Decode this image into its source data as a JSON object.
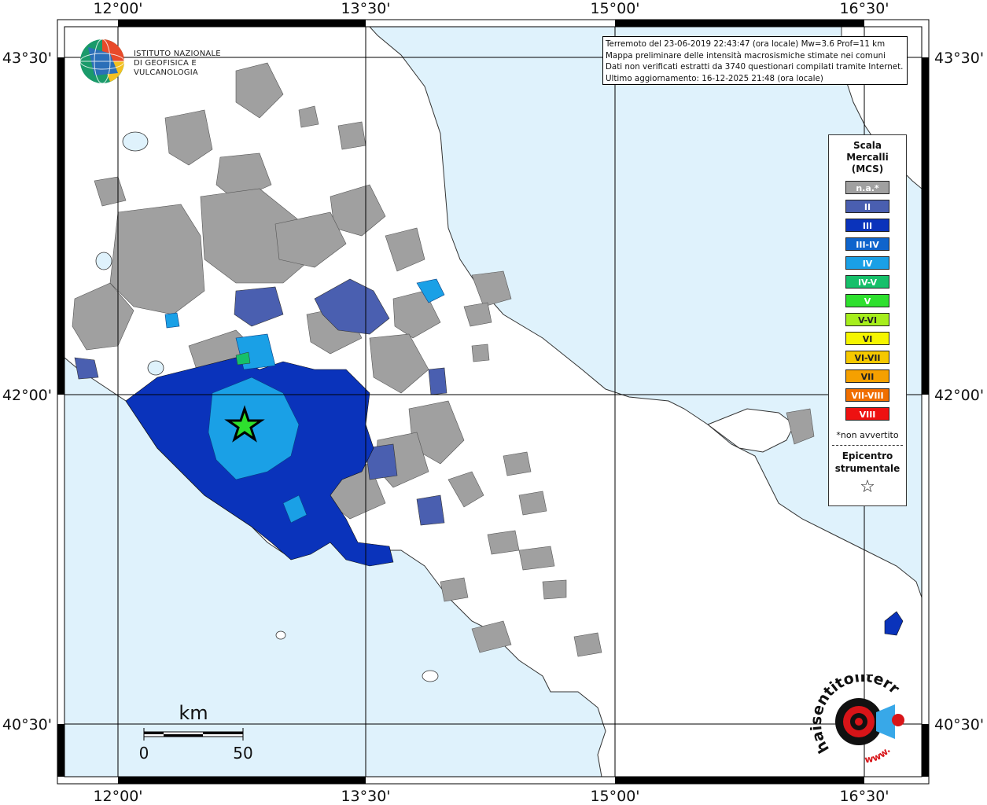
{
  "map": {
    "lon_labels": [
      "12°00'",
      "13°30'",
      "15°00'",
      "16°30'"
    ],
    "lat_labels": [
      "43°30'",
      "42°00'",
      "40°30'"
    ],
    "scale_bar": {
      "unit": "km",
      "start": "0",
      "end": "50"
    }
  },
  "info_box": {
    "line1": "Terremoto del 23-06-2019 22:43:47 (ora locale) Mw=3.6 Prof=11 km",
    "line2": "Mappa preliminare delle intensità macrosismiche stimate nei comuni",
    "line3": "Dati non verificati estratti da 3740 questionari compilati tramite Internet.",
    "line4": "Ultimo aggiornamento: 16-12-2025 21:48 (ora locale)"
  },
  "legend": {
    "title_line1": "Scala",
    "title_line2": "Mercalli",
    "title_line3": "(MCS)",
    "items": [
      {
        "label": "n.a.*",
        "color": "#a0a0a0"
      },
      {
        "label": "II",
        "color": "#4a5fb0"
      },
      {
        "label": "III",
        "color": "#0a33bb"
      },
      {
        "label": "III-IV",
        "color": "#0f64cc"
      },
      {
        "label": "IV",
        "color": "#1aa0e6"
      },
      {
        "label": "IV-V",
        "color": "#16c06a"
      },
      {
        "label": "V",
        "color": "#2ee02e"
      },
      {
        "label": "V-VI",
        "color": "#a6ee1c"
      },
      {
        "label": "VI",
        "color": "#f5f500"
      },
      {
        "label": "VI-VII",
        "color": "#f5c800"
      },
      {
        "label": "VII",
        "color": "#f5a000"
      },
      {
        "label": "VII-VIII",
        "color": "#f06e00"
      },
      {
        "label": "VIII",
        "color": "#ee1111"
      }
    ],
    "note": "*non avvertito",
    "epicenter_line1": "Epicentro",
    "epicenter_line2": "strumentale",
    "star_symbol": "☆"
  },
  "logos": {
    "ingv_line1": "ISTITUTO NAZIONALE",
    "ingv_line2": "DI GEOFISICA E VULCANOLOGIA",
    "hsit_text": "haisentitoilterremoto.it",
    "hsit_url": "www."
  },
  "colors": {
    "sea": "#dff2fc",
    "land": "#ffffff",
    "na": "#a0a0a0",
    "ii": "#4a5fb0",
    "iii": "#0a33bb",
    "iv": "#1aa0e6"
  }
}
